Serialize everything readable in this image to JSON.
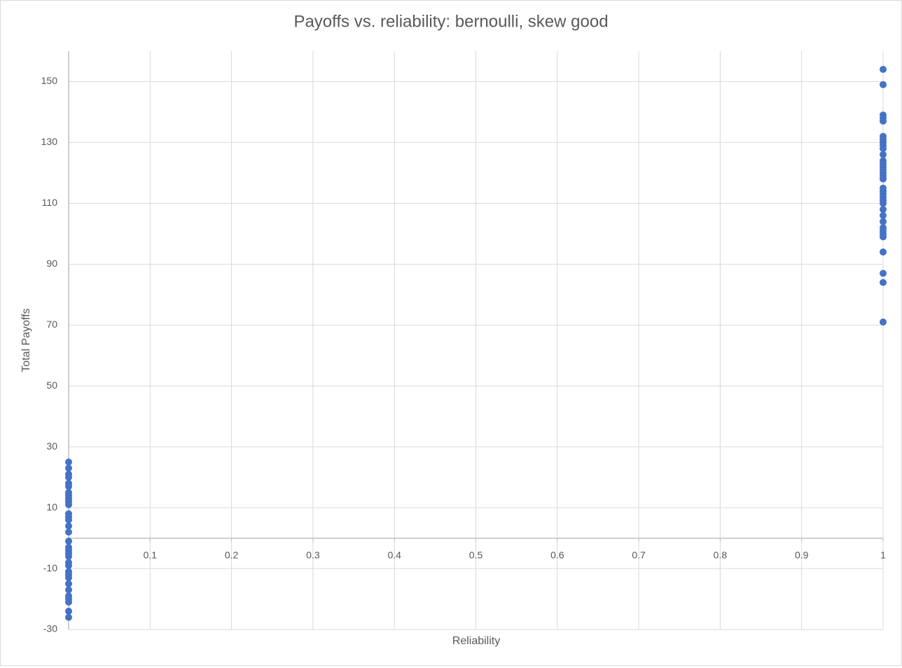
{
  "chart_data": {
    "type": "scatter",
    "title": "Payoffs vs. reliability: bernoulli, skew good",
    "x_label": "Reliability",
    "y_label": "Total Payoffs",
    "color": "#4472c4",
    "grid": true,
    "xlim": [
      0,
      1
    ],
    "xticks": [
      0,
      0.1,
      0.2,
      0.3,
      0.4,
      0.5,
      0.6,
      0.7,
      0.8,
      0.9,
      1
    ],
    "ylim": [
      -30,
      160
    ],
    "yticks": [
      -30,
      -10,
      10,
      30,
      50,
      70,
      90,
      110,
      130,
      150
    ],
    "x": [
      1,
      1,
      1,
      1,
      1,
      1,
      1,
      1,
      1,
      1,
      1,
      1,
      1,
      1,
      1,
      1,
      1,
      1,
      1,
      1,
      1,
      1,
      1,
      1,
      1,
      1,
      1,
      1,
      1,
      1,
      1,
      1,
      1,
      1,
      1,
      0,
      0,
      0,
      0,
      0,
      0,
      0,
      0,
      0,
      0,
      0,
      0,
      0,
      0,
      0,
      0,
      0,
      0,
      0,
      0,
      0,
      0,
      0,
      0,
      0,
      0,
      0,
      0,
      0,
      0,
      0,
      0,
      0
    ],
    "values": [
      154,
      149,
      139,
      138,
      137,
      132,
      131,
      130,
      129,
      128,
      126,
      124,
      123,
      122,
      121,
      120,
      119,
      118,
      115,
      114,
      113,
      112,
      111,
      110,
      108,
      106,
      104,
      102,
      101,
      100,
      99,
      94,
      87,
      84,
      71,
      25,
      23,
      21,
      20,
      18,
      17,
      15,
      14,
      13,
      12,
      11,
      8,
      7,
      6,
      4,
      2,
      -1,
      -3,
      -4,
      -5,
      -6,
      -8,
      -9,
      -11,
      -12,
      -13,
      -15,
      -17,
      -19,
      -20,
      -21,
      -24,
      -26
    ]
  }
}
